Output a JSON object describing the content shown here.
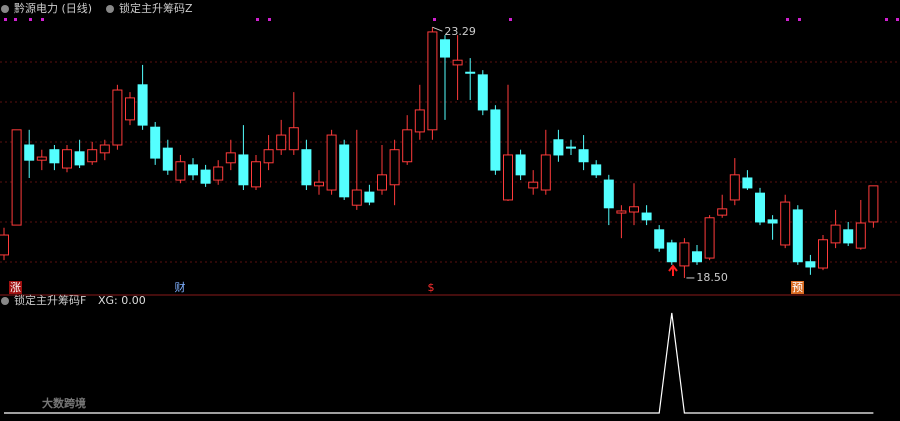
{
  "chart_data": [
    {
      "type": "candlestick",
      "title": "黔源电力 (日线)",
      "subtitle": "锁定主升筹码Z",
      "ylim": [
        18.27,
        23.81
      ],
      "up_color": "#ff3b3b",
      "down_color": "#54ffff",
      "high_label": "23.29",
      "low_label": "18.50",
      "markers": [
        "涨",
        "财",
        "预"
      ],
      "open": [
        18.94,
        19.51,
        21.04,
        20.75,
        20.95,
        20.6,
        20.91,
        20.72,
        20.89,
        21.04,
        21.52,
        22.19,
        21.38,
        20.98,
        20.37,
        20.66,
        20.56,
        20.37,
        20.7,
        20.85,
        20.24,
        20.7,
        20.95,
        20.95,
        20.95,
        20.26,
        20.18,
        21.04,
        19.89,
        20.14,
        20.18,
        20.28,
        20.72,
        21.29,
        21.33,
        23.05,
        22.57,
        22.43,
        22.38,
        21.71,
        19.99,
        20.85,
        20.22,
        20.18,
        21.14,
        21.0,
        20.95,
        20.66,
        20.37,
        19.74,
        19.76,
        19.74,
        19.42,
        19.17,
        18.73,
        19.0,
        18.88,
        19.7,
        19.99,
        20.41,
        20.12,
        19.61,
        19.13,
        19.8,
        18.81,
        18.69,
        19.17,
        19.42,
        19.07,
        19.57
      ],
      "high": [
        19.46,
        21.33,
        21.33,
        20.95,
        21.04,
        21.04,
        21.14,
        21.1,
        21.14,
        22.19,
        22.05,
        22.57,
        21.48,
        21.14,
        20.85,
        20.79,
        20.66,
        20.75,
        21.14,
        21.42,
        20.85,
        21.23,
        21.52,
        22.05,
        21.14,
        20.56,
        21.33,
        21.14,
        21.33,
        20.28,
        21.04,
        21.14,
        21.61,
        22.19,
        23.29,
        23.14,
        23.14,
        22.7,
        22.47,
        21.8,
        22.19,
        20.95,
        20.56,
        21.33,
        21.33,
        21.14,
        21.23,
        20.75,
        20.47,
        19.89,
        20.31,
        19.89,
        19.51,
        19.23,
        19.26,
        19.13,
        19.7,
        20.09,
        20.79,
        20.56,
        20.22,
        19.7,
        20.09,
        19.89,
        18.94,
        19.32,
        19.8,
        19.57,
        19.99,
        20.26
      ],
      "low": [
        18.84,
        19.51,
        20.41,
        20.56,
        20.56,
        20.52,
        20.6,
        20.66,
        20.75,
        20.95,
        21.42,
        21.33,
        20.66,
        20.47,
        20.31,
        20.37,
        20.24,
        20.28,
        20.56,
        20.18,
        20.18,
        20.56,
        20.85,
        20.85,
        20.18,
        20.09,
        20.09,
        19.99,
        19.8,
        19.89,
        20.09,
        19.89,
        20.66,
        21.14,
        21.14,
        21.52,
        21.9,
        21.9,
        21.61,
        20.47,
        19.97,
        20.37,
        20.09,
        20.09,
        20.72,
        20.85,
        20.56,
        20.41,
        19.51,
        19.26,
        19.51,
        19.51,
        19.0,
        18.75,
        18.5,
        18.75,
        18.84,
        19.65,
        19.89,
        20.18,
        19.51,
        19.23,
        19.07,
        18.75,
        18.56,
        18.65,
        19.07,
        19.11,
        19.04,
        19.46
      ],
      "close": [
        19.32,
        21.33,
        20.75,
        20.81,
        20.7,
        20.95,
        20.66,
        20.95,
        21.04,
        22.09,
        21.94,
        21.42,
        20.79,
        20.56,
        20.72,
        20.47,
        20.31,
        20.62,
        20.89,
        20.28,
        20.72,
        20.95,
        21.23,
        21.37,
        20.28,
        20.33,
        21.23,
        20.05,
        20.18,
        19.95,
        20.47,
        20.95,
        21.33,
        21.71,
        23.2,
        22.72,
        22.66,
        22.42,
        21.71,
        20.56,
        20.85,
        20.47,
        20.33,
        20.85,
        20.85,
        20.98,
        20.72,
        20.47,
        19.84,
        19.78,
        19.86,
        19.61,
        19.07,
        18.81,
        19.17,
        18.81,
        19.65,
        19.82,
        20.47,
        20.22,
        19.57,
        19.55,
        19.95,
        18.81,
        18.71,
        19.23,
        19.51,
        19.17,
        19.55,
        20.26
      ]
    },
    {
      "type": "line",
      "title": "锁定主升筹码F",
      "legend": "XG: 0.00",
      "color": "#ffffff",
      "ylim": [
        0,
        1
      ],
      "values": [
        0,
        0,
        0,
        0,
        0,
        0,
        0,
        0,
        0,
        0,
        0,
        0,
        0,
        0,
        0,
        0,
        0,
        0,
        0,
        0,
        0,
        0,
        0,
        0,
        0,
        0,
        0,
        0,
        0,
        0,
        0,
        0,
        0,
        0,
        0,
        0,
        0,
        0,
        0,
        0,
        0,
        0,
        0,
        0,
        0,
        0,
        0,
        0,
        0,
        0,
        0,
        0,
        0,
        1,
        0,
        0,
        0,
        0,
        0,
        0,
        0,
        0,
        0,
        0,
        0,
        0,
        0,
        0,
        0,
        0
      ]
    },
    {
      "type": "watermark",
      "text": "大数跨境"
    }
  ]
}
